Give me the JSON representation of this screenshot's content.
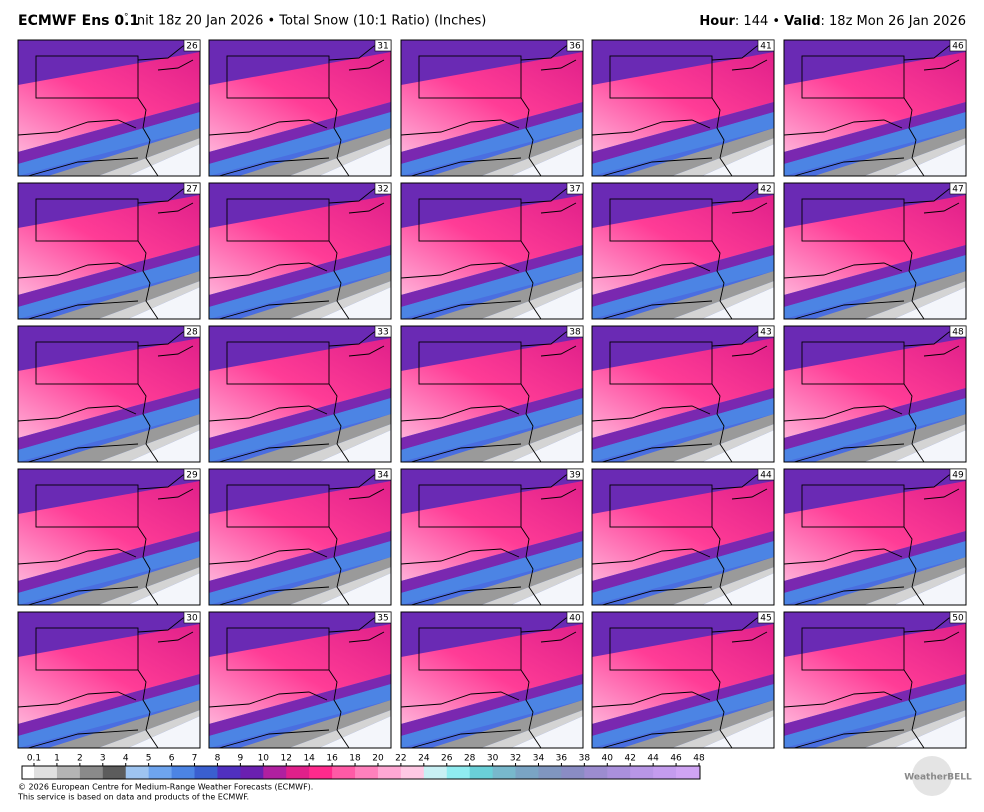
{
  "header": {
    "model": "ECMWF Ens 0.1",
    "degree": "°",
    "subtitle": "Init 18z 20 Jan 2026 • Total Snow (10:1 Ratio) (Inches)",
    "hour_label": "Hour",
    "hour_value": ": 144 • ",
    "valid_label": "Valid",
    "valid_value": ": 18z Mon 26 Jan 2026"
  },
  "panels": {
    "members": [
      "26",
      "31",
      "36",
      "41",
      "46",
      "27",
      "32",
      "37",
      "42",
      "47",
      "28",
      "33",
      "38",
      "43",
      "48",
      "29",
      "34",
      "39",
      "44",
      "49",
      "30",
      "35",
      "40",
      "45",
      "50"
    ]
  },
  "colorbar": {
    "ticks": [
      0.1,
      1,
      2,
      3,
      4,
      5,
      6,
      7,
      8,
      9,
      10,
      12,
      14,
      16,
      18,
      20,
      22,
      24,
      26,
      28,
      30,
      32,
      34,
      36,
      38,
      40,
      42,
      44,
      46,
      48
    ],
    "colors": [
      "#e0e0e0",
      "#b4b4b4",
      "#8a8a8a",
      "#5c5c5c",
      "#9ec4f0",
      "#6ea4ee",
      "#4c84e4",
      "#3a5fd0",
      "#5030c0",
      "#6a20b0",
      "#b020a0",
      "#e0208a",
      "#ff2a8c",
      "#ff5aa6",
      "#ff80bc",
      "#ffa8d4",
      "#ffc8e4",
      "#c8f0f4",
      "#90ecf0",
      "#6ad0d8",
      "#78b8cc",
      "#7aa4c4",
      "#8096c0",
      "#8a8cc4",
      "#9c8cd0",
      "#aa90dc",
      "#b896e6",
      "#c49cee",
      "#d0a4f4"
    ]
  },
  "footer": {
    "copyright": "© 2026 European Centre for Medium-Range Weather Forecasts (ECMWF).",
    "note": "This service is based on data and products of the ECMWF.",
    "logo": "WeatherBELL"
  }
}
